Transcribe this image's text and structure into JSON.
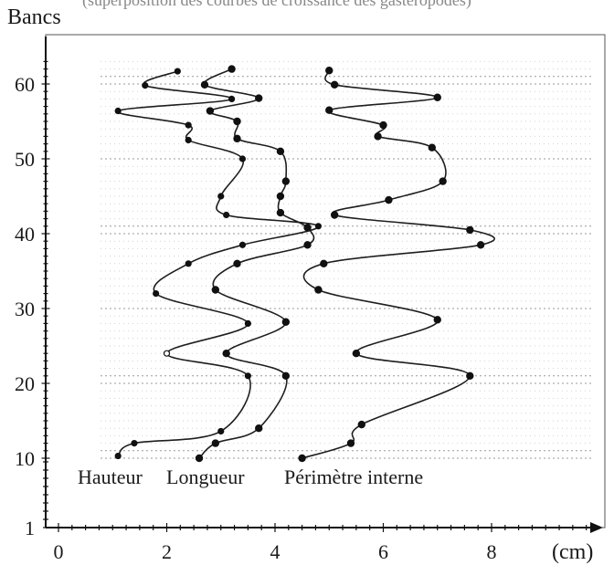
{
  "header_text": "(superposition des courbes de croissance des gastéropodes)",
  "chart_data": {
    "type": "line",
    "ylabel": "Bancs",
    "xlabel": "(cm)",
    "xlim": [
      0,
      10
    ],
    "ylim": [
      1,
      65
    ],
    "x_ticks": [
      0,
      2,
      4,
      6,
      8
    ],
    "y_ticks": [
      1,
      10,
      20,
      30,
      40,
      50,
      60
    ],
    "orientation": "horizontal-profiles",
    "series": [
      {
        "name": "Hauteur",
        "points": [
          [
            1.1,
            10.3
          ],
          [
            1.4,
            12.0
          ],
          [
            3.0,
            13.6
          ],
          [
            3.5,
            21.0
          ],
          [
            2.0,
            24.0
          ],
          [
            3.5,
            28.0
          ],
          [
            1.8,
            32.0
          ],
          [
            2.4,
            36.0
          ],
          [
            3.4,
            38.5
          ],
          [
            4.8,
            41.0
          ],
          [
            3.1,
            42.5
          ],
          [
            3.0,
            45.0
          ],
          [
            3.4,
            50.0
          ],
          [
            2.4,
            52.5
          ],
          [
            2.4,
            54.5
          ],
          [
            1.1,
            56.4
          ],
          [
            3.2,
            58.0
          ],
          [
            1.6,
            59.8
          ],
          [
            2.2,
            61.7
          ]
        ]
      },
      {
        "name": "Longueur",
        "points": [
          [
            2.6,
            10.0
          ],
          [
            2.9,
            12.0
          ],
          [
            3.7,
            14.0
          ],
          [
            4.2,
            21.0
          ],
          [
            3.1,
            24.0
          ],
          [
            4.2,
            28.2
          ],
          [
            2.9,
            32.5
          ],
          [
            3.3,
            36.0
          ],
          [
            4.6,
            38.5
          ],
          [
            4.6,
            40.8
          ],
          [
            4.1,
            42.8
          ],
          [
            4.1,
            45.0
          ],
          [
            4.2,
            47.0
          ],
          [
            4.1,
            51.0
          ],
          [
            3.3,
            52.7
          ],
          [
            3.3,
            55.0
          ],
          [
            2.8,
            56.4
          ],
          [
            3.7,
            58.1
          ],
          [
            2.7,
            59.9
          ],
          [
            3.2,
            62.0
          ]
        ]
      },
      {
        "name": "Périmètre interne",
        "points": [
          [
            4.5,
            10.0
          ],
          [
            5.4,
            12.0
          ],
          [
            5.6,
            14.5
          ],
          [
            7.6,
            21.0
          ],
          [
            5.5,
            24.0
          ],
          [
            7.0,
            28.5
          ],
          [
            4.8,
            32.5
          ],
          [
            4.9,
            36.0
          ],
          [
            7.8,
            38.5
          ],
          [
            7.6,
            40.5
          ],
          [
            5.1,
            42.5
          ],
          [
            6.1,
            44.5
          ],
          [
            7.1,
            47.0
          ],
          [
            6.9,
            51.5
          ],
          [
            5.9,
            53.0
          ],
          [
            6.0,
            54.5
          ],
          [
            5.0,
            56.5
          ],
          [
            7.0,
            58.2
          ],
          [
            5.1,
            59.9
          ],
          [
            5.0,
            61.8
          ]
        ]
      }
    ]
  }
}
